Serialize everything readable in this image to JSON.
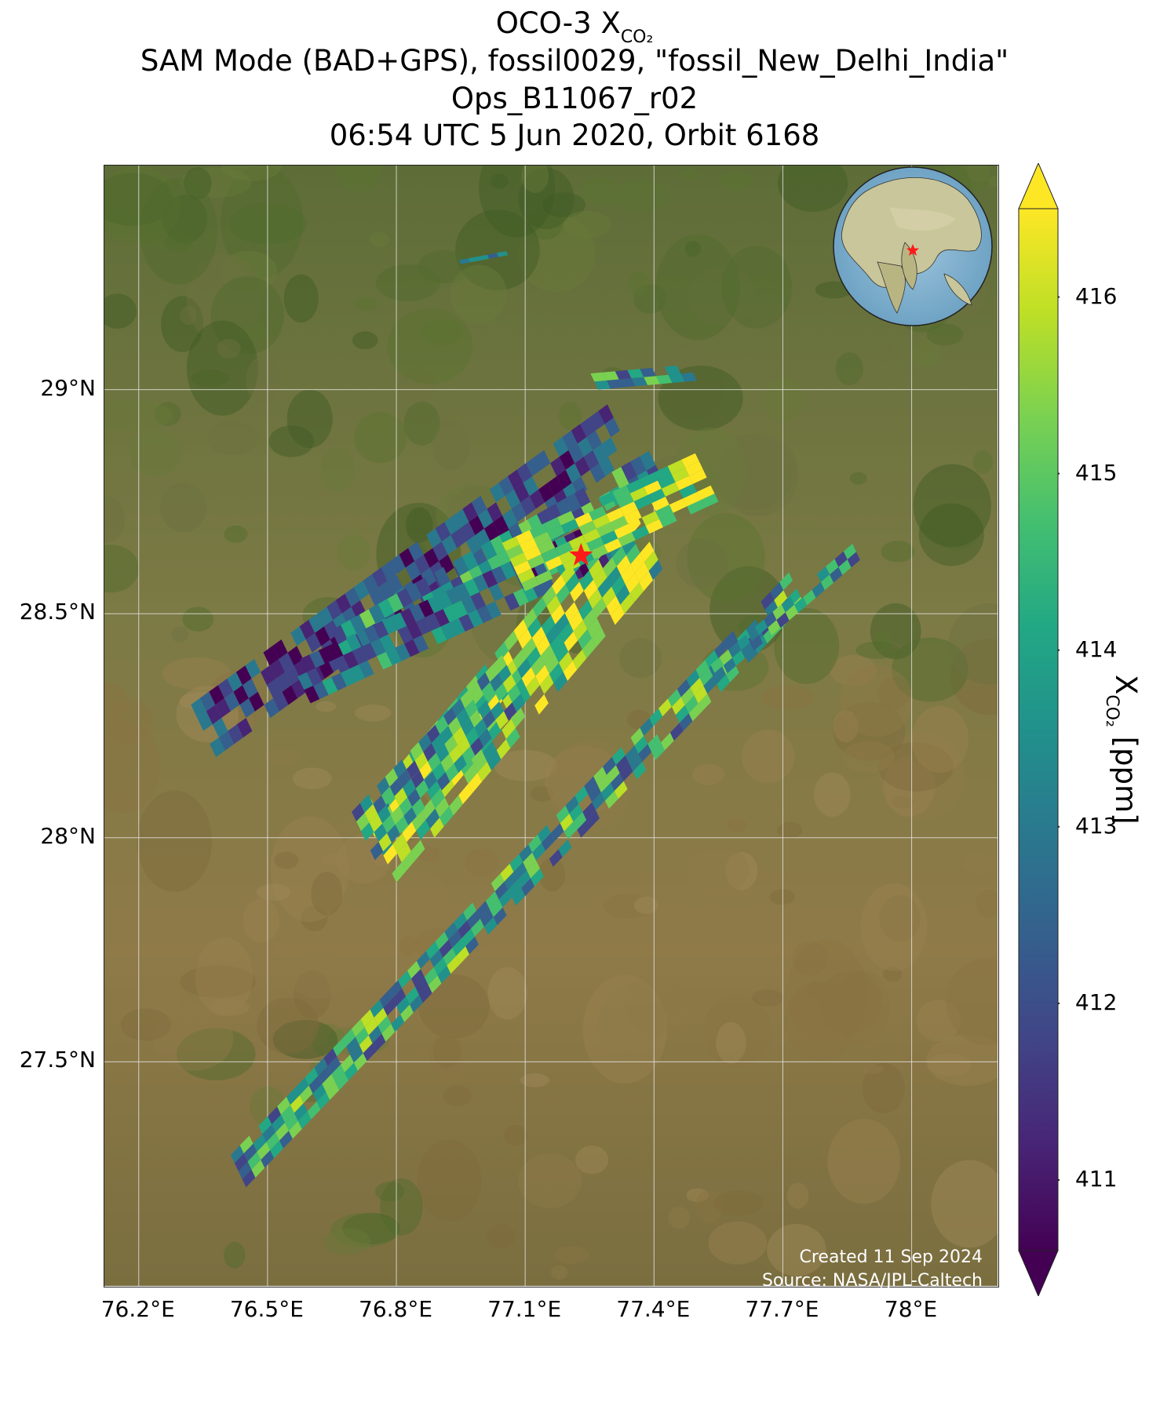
{
  "title": {
    "line1_prefix": "OCO-3 X",
    "line1_sub": "CO₂",
    "line2": "SAM Mode (BAD+GPS), fossil0029, \"fossil_New_Delhi_India\"",
    "line3": "Ops_B11067_r02",
    "line4": "06:54 UTC 5 Jun 2020, Orbit 6168"
  },
  "map": {
    "lon_range": [
      76.12,
      78.2
    ],
    "lat_range": [
      27.0,
      29.5
    ],
    "lon_ticks": [
      {
        "value": 76.2,
        "label": "76.2°E"
      },
      {
        "value": 76.5,
        "label": "76.5°E"
      },
      {
        "value": 76.8,
        "label": "76.8°E"
      },
      {
        "value": 77.1,
        "label": "77.1°E"
      },
      {
        "value": 77.4,
        "label": "77.4°E"
      },
      {
        "value": 77.7,
        "label": "77.7°E"
      },
      {
        "value": 78.0,
        "label": "78°E"
      }
    ],
    "lat_ticks": [
      {
        "value": 29.0,
        "label": "29°N"
      },
      {
        "value": 28.5,
        "label": "28.5°N"
      },
      {
        "value": 28.0,
        "label": "28°N"
      },
      {
        "value": 27.5,
        "label": "27.5°N"
      }
    ],
    "target": {
      "lon": 77.23,
      "lat": 28.63
    },
    "background": "satellite imagery",
    "credit_line1": "Created 11 Sep 2024",
    "credit_line2": "Source: NASA/JPL-Caltech"
  },
  "colorbar": {
    "colormap": "viridis",
    "range": [
      410.6,
      416.5
    ],
    "ticks": [
      "411",
      "412",
      "413",
      "414",
      "415",
      "416"
    ],
    "tick_values": [
      411,
      412,
      413,
      414,
      415,
      416
    ],
    "label_prefix": "X",
    "label_sub": "CO₂",
    "label_suffix": " [ppm]",
    "extend": "both"
  },
  "colors": {
    "star": "#ff1a1a",
    "grid": "#e8e8e8"
  }
}
